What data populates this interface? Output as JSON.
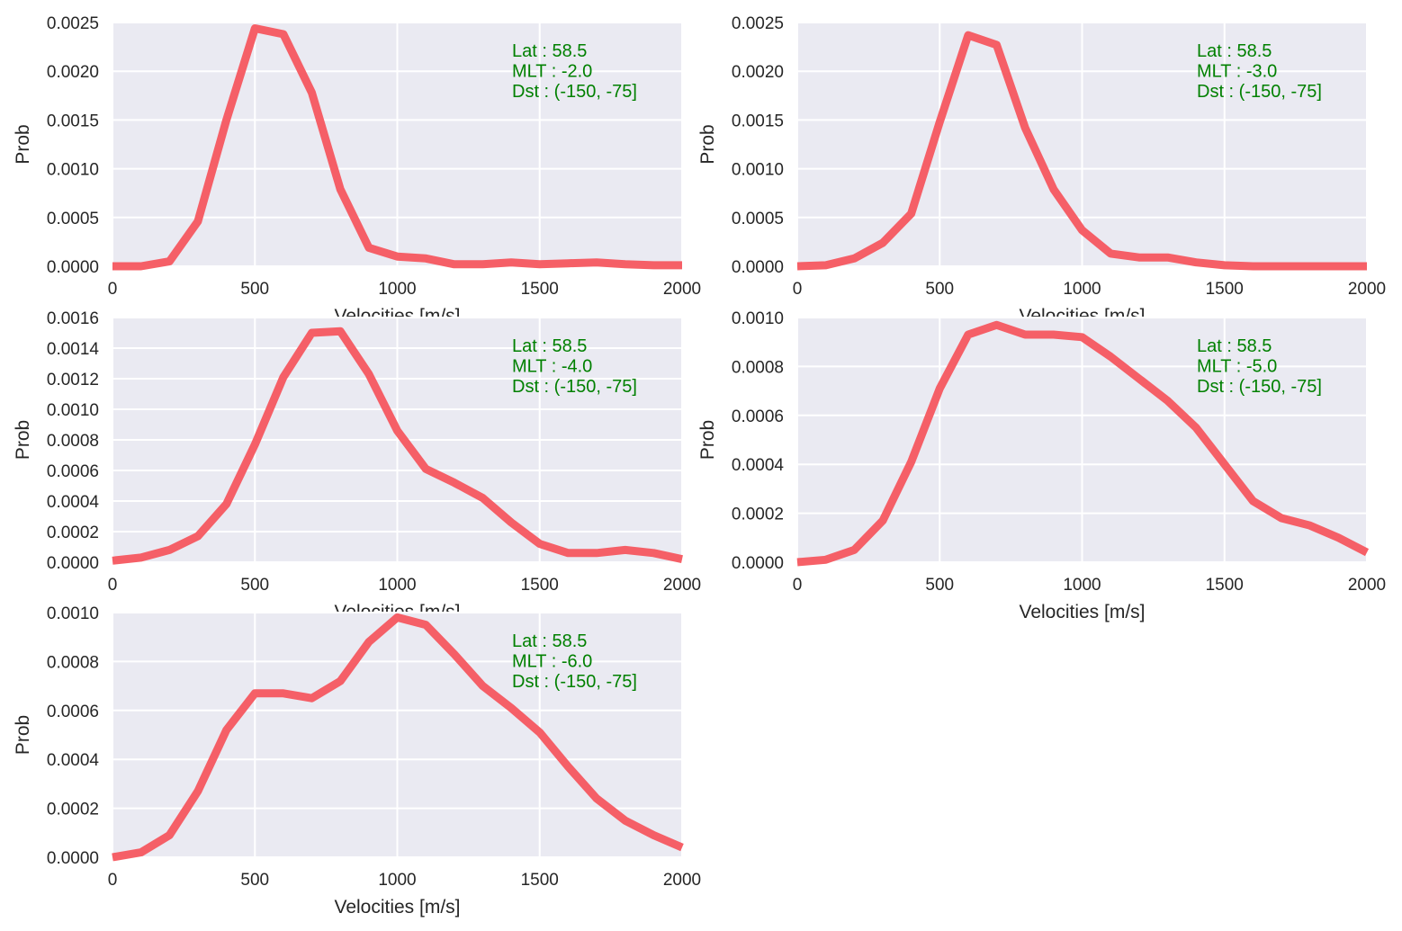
{
  "figure": {
    "series_color": "#F6575F",
    "annotation_color": "#008000",
    "panel_background": "#EAEAF2"
  },
  "chart_data": [
    {
      "type": "line",
      "xlabel": "Velocities [m/s]",
      "ylabel": "Prob",
      "xlim": [
        0,
        2000
      ],
      "ylim": [
        0,
        0.0025
      ],
      "x_ticks": [
        "0",
        "500",
        "1000",
        "1500",
        "2000"
      ],
      "y_ticks": [
        "0.0000",
        "0.0005",
        "0.0010",
        "0.0015",
        "0.0020",
        "0.0025"
      ],
      "annotation": [
        "Lat : 58.5",
        "MLT : -2.0",
        "Dst : (-150, -75]"
      ],
      "x": [
        0,
        100,
        200,
        300,
        400,
        500,
        600,
        700,
        800,
        900,
        1000,
        1100,
        1200,
        1300,
        1400,
        1500,
        1600,
        1700,
        1800,
        1900,
        2000
      ],
      "values": [
        0.0,
        0.0,
        5e-05,
        0.00046,
        0.0015,
        0.00244,
        0.00238,
        0.00178,
        0.00079,
        0.00019,
        0.0001,
        8e-05,
        2e-05,
        2e-05,
        4e-05,
        2e-05,
        3e-05,
        4e-05,
        2e-05,
        1e-05,
        1e-05
      ]
    },
    {
      "type": "line",
      "xlabel": "Velocities [m/s]",
      "ylabel": "Prob",
      "xlim": [
        0,
        2000
      ],
      "ylim": [
        0,
        0.0025
      ],
      "x_ticks": [
        "0",
        "500",
        "1000",
        "1500",
        "2000"
      ],
      "y_ticks": [
        "0.0000",
        "0.0005",
        "0.0010",
        "0.0015",
        "0.0020",
        "0.0025"
      ],
      "annotation": [
        "Lat : 58.5",
        "MLT : -3.0",
        "Dst : (-150, -75]"
      ],
      "x": [
        0,
        100,
        200,
        300,
        400,
        500,
        600,
        700,
        800,
        900,
        1000,
        1100,
        1200,
        1300,
        1400,
        1500,
        1600,
        1700,
        1800,
        1900,
        2000
      ],
      "values": [
        0.0,
        1e-05,
        8e-05,
        0.00024,
        0.00054,
        0.00148,
        0.00237,
        0.00227,
        0.00142,
        0.00079,
        0.00037,
        0.00013,
        9e-05,
        9e-05,
        4e-05,
        1e-05,
        0.0,
        0.0,
        0.0,
        0.0,
        0.0
      ]
    },
    {
      "type": "line",
      "xlabel": "Velocities [m/s]",
      "ylabel": "Prob",
      "xlim": [
        0,
        2000
      ],
      "ylim": [
        0,
        0.0016
      ],
      "x_ticks": [
        "0",
        "500",
        "1000",
        "1500",
        "2000"
      ],
      "y_ticks": [
        "0.0000",
        "0.0002",
        "0.0004",
        "0.0006",
        "0.0008",
        "0.0010",
        "0.0012",
        "0.0014",
        "0.0016"
      ],
      "annotation": [
        "Lat : 58.5",
        "MLT : -4.0",
        "Dst : (-150, -75]"
      ],
      "x": [
        0,
        100,
        200,
        300,
        400,
        500,
        600,
        700,
        800,
        900,
        1000,
        1100,
        1200,
        1300,
        1400,
        1500,
        1600,
        1700,
        1800,
        1900,
        2000
      ],
      "values": [
        1e-05,
        3e-05,
        8e-05,
        0.00017,
        0.00038,
        0.00077,
        0.00121,
        0.0015,
        0.00151,
        0.00123,
        0.00086,
        0.00061,
        0.00052,
        0.00042,
        0.00026,
        0.00012,
        6e-05,
        6e-05,
        8e-05,
        6e-05,
        2e-05
      ]
    },
    {
      "type": "line",
      "xlabel": "Velocities [m/s]",
      "ylabel": "Prob",
      "xlim": [
        0,
        2000
      ],
      "ylim": [
        0,
        0.001
      ],
      "x_ticks": [
        "0",
        "500",
        "1000",
        "1500",
        "2000"
      ],
      "y_ticks": [
        "0.0000",
        "0.0002",
        "0.0004",
        "0.0006",
        "0.0008",
        "0.0010"
      ],
      "annotation": [
        "Lat : 58.5",
        "MLT : -5.0",
        "Dst : (-150, -75]"
      ],
      "x": [
        0,
        100,
        200,
        300,
        400,
        500,
        600,
        700,
        800,
        900,
        1000,
        1100,
        1200,
        1300,
        1400,
        1500,
        1600,
        1700,
        1800,
        1900,
        2000
      ],
      "values": [
        0.0,
        1e-05,
        5e-05,
        0.00017,
        0.00041,
        0.00071,
        0.00093,
        0.00097,
        0.00093,
        0.00093,
        0.00092,
        0.00084,
        0.00075,
        0.00066,
        0.00055,
        0.0004,
        0.00025,
        0.00018,
        0.00015,
        0.0001,
        4e-05
      ]
    },
    {
      "type": "line",
      "xlabel": "Velocities [m/s]",
      "ylabel": "Prob",
      "xlim": [
        0,
        2000
      ],
      "ylim": [
        0,
        0.001
      ],
      "x_ticks": [
        "0",
        "500",
        "1000",
        "1500",
        "2000"
      ],
      "y_ticks": [
        "0.0000",
        "0.0002",
        "0.0004",
        "0.0006",
        "0.0008",
        "0.0010"
      ],
      "annotation": [
        "Lat : 58.5",
        "MLT : -6.0",
        "Dst : (-150, -75]"
      ],
      "x": [
        0,
        100,
        200,
        300,
        400,
        500,
        600,
        700,
        800,
        900,
        1000,
        1100,
        1200,
        1300,
        1400,
        1500,
        1600,
        1700,
        1800,
        1900,
        2000
      ],
      "values": [
        0.0,
        2e-05,
        9e-05,
        0.00027,
        0.00052,
        0.00067,
        0.00067,
        0.00065,
        0.00072,
        0.00088,
        0.00098,
        0.00095,
        0.00083,
        0.0007,
        0.00061,
        0.00051,
        0.00037,
        0.00024,
        0.00015,
        9e-05,
        4e-05
      ]
    }
  ]
}
